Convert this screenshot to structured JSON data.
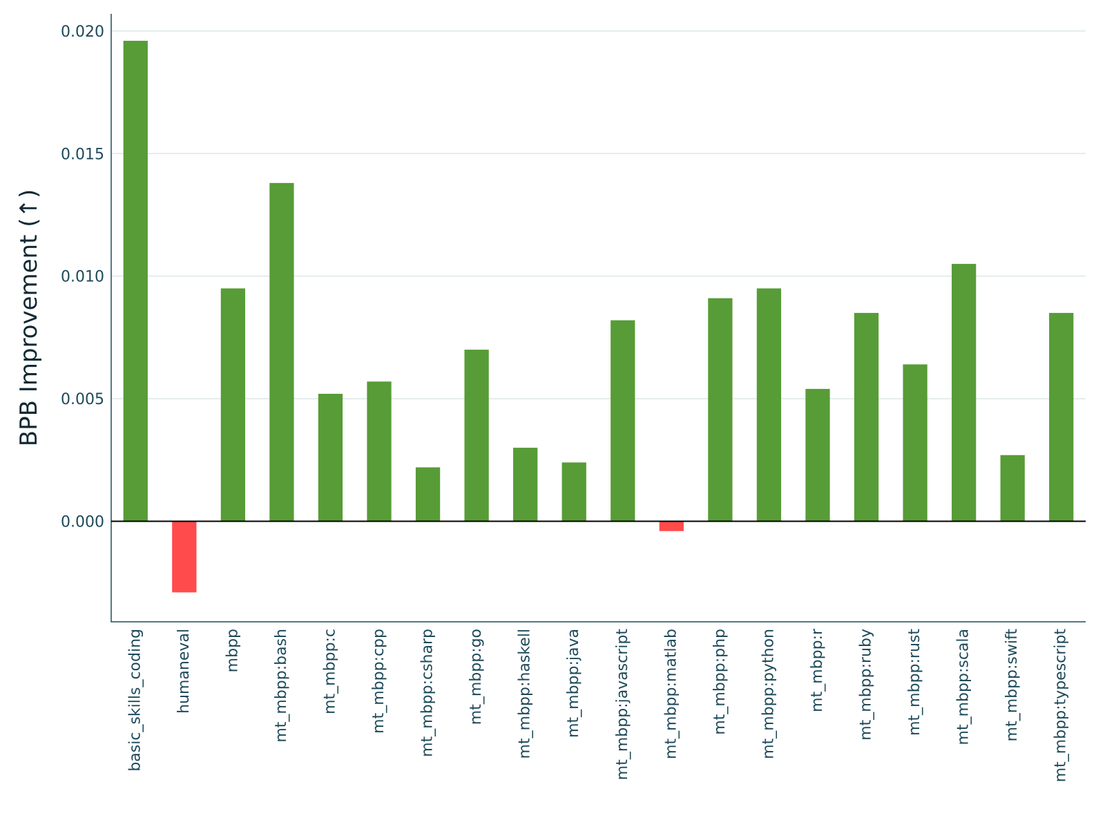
{
  "chart_data": {
    "type": "bar",
    "title": "",
    "xlabel": "",
    "ylabel": "BPB Improvement (↑)",
    "ylim": [
      -0.0041,
      0.0207
    ],
    "yticks": [
      0.0,
      0.005,
      0.01,
      0.015,
      0.02
    ],
    "ytick_labels": [
      "0.000",
      "0.005",
      "0.010",
      "0.015",
      "0.020"
    ],
    "grid": true,
    "colors": {
      "positive": "#579c36",
      "negative": "#ff4b4b",
      "axis_text": "#1e4a5a",
      "grid": "#dce6e8"
    },
    "categories": [
      "basic_skills_coding",
      "humaneval",
      "mbpp",
      "mt_mbpp:bash",
      "mt_mbpp:c",
      "mt_mbpp:cpp",
      "mt_mbpp:csharp",
      "mt_mbpp:go",
      "mt_mbpp:haskell",
      "mt_mbpp:java",
      "mt_mbpp:javascript",
      "mt_mbpp:matlab",
      "mt_mbpp:php",
      "mt_mbpp:python",
      "mt_mbpp:r",
      "mt_mbpp:ruby",
      "mt_mbpp:rust",
      "mt_mbpp:scala",
      "mt_mbpp:swift",
      "mt_mbpp:typescript"
    ],
    "values": [
      0.0196,
      -0.0029,
      0.0095,
      0.0138,
      0.0052,
      0.0057,
      0.0022,
      0.007,
      0.003,
      0.0024,
      0.0082,
      -0.0004,
      0.0091,
      0.0095,
      0.0054,
      0.0085,
      0.0064,
      0.0105,
      0.0027,
      0.0085
    ]
  }
}
